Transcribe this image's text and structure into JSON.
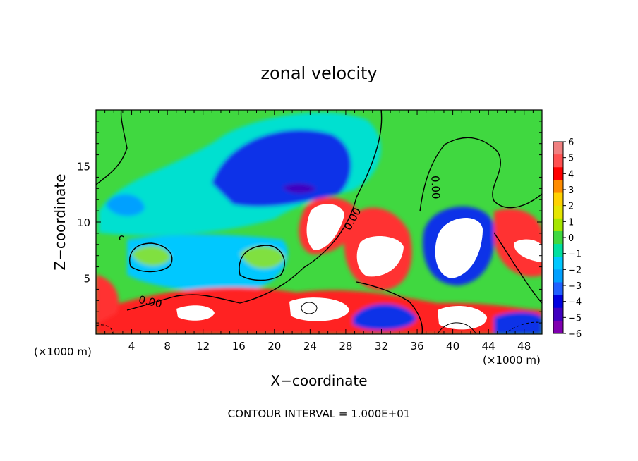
{
  "chart_data": {
    "type": "heatmap",
    "title": "zonal velocity",
    "xlabel": "X−coordinate",
    "ylabel": "Z−coordinate",
    "x_unit": "(×1000 m)",
    "y_unit": "(×1000 m)",
    "xlim": [
      0,
      50
    ],
    "ylim": [
      0,
      20
    ],
    "x_ticks": [
      4,
      8,
      12,
      16,
      20,
      24,
      28,
      32,
      36,
      40,
      44,
      48
    ],
    "y_ticks": [
      5,
      10,
      15
    ],
    "colorbar": {
      "ticks": [
        "6",
        "5",
        "4",
        "3",
        "2",
        "1",
        "0",
        "−1",
        "−2",
        "−3",
        "−4",
        "−5",
        "−6"
      ],
      "range": [
        -6,
        6
      ],
      "colors": [
        "#f08080",
        "#ff5050",
        "#ff0000",
        "#ff8c00",
        "#ffd200",
        "#e6e600",
        "#a6e600",
        "#40d840",
        "#00e0a0",
        "#00c8ff",
        "#00a0ff",
        "#2060ff",
        "#0000e0",
        "#4000c0",
        "#8000b0"
      ]
    },
    "contour_label": "0.00",
    "footer": "CONTOUR INTERVAL = 1.000E+01",
    "features": [
      {
        "kind": "negative",
        "x": 18,
        "y": 14.5,
        "peak": -5.5
      },
      {
        "kind": "negative",
        "x": 4,
        "y": 11.5,
        "peak": -2.5
      },
      {
        "kind": "negative",
        "x": 39,
        "y": 8.5,
        "peak": -5
      },
      {
        "kind": "negative",
        "x": 32,
        "y": 1.5,
        "peak": -5
      },
      {
        "kind": "positive",
        "x": 24.5,
        "y": 9.5,
        "peak": 8
      },
      {
        "kind": "positive",
        "x": 32.5,
        "y": 7.5,
        "peak": 8
      },
      {
        "kind": "positive",
        "x": 40,
        "y": 7.5,
        "peak": 8
      },
      {
        "kind": "positive",
        "x": 48.5,
        "y": 6,
        "peak": 7
      },
      {
        "kind": "positive",
        "x": 24,
        "y": 2.5,
        "peak": 8
      },
      {
        "kind": "positive",
        "x": 10,
        "y": 1.5,
        "peak": 7
      },
      {
        "kind": "positive",
        "x": 1.5,
        "y": 3.5,
        "peak": 6
      }
    ]
  }
}
